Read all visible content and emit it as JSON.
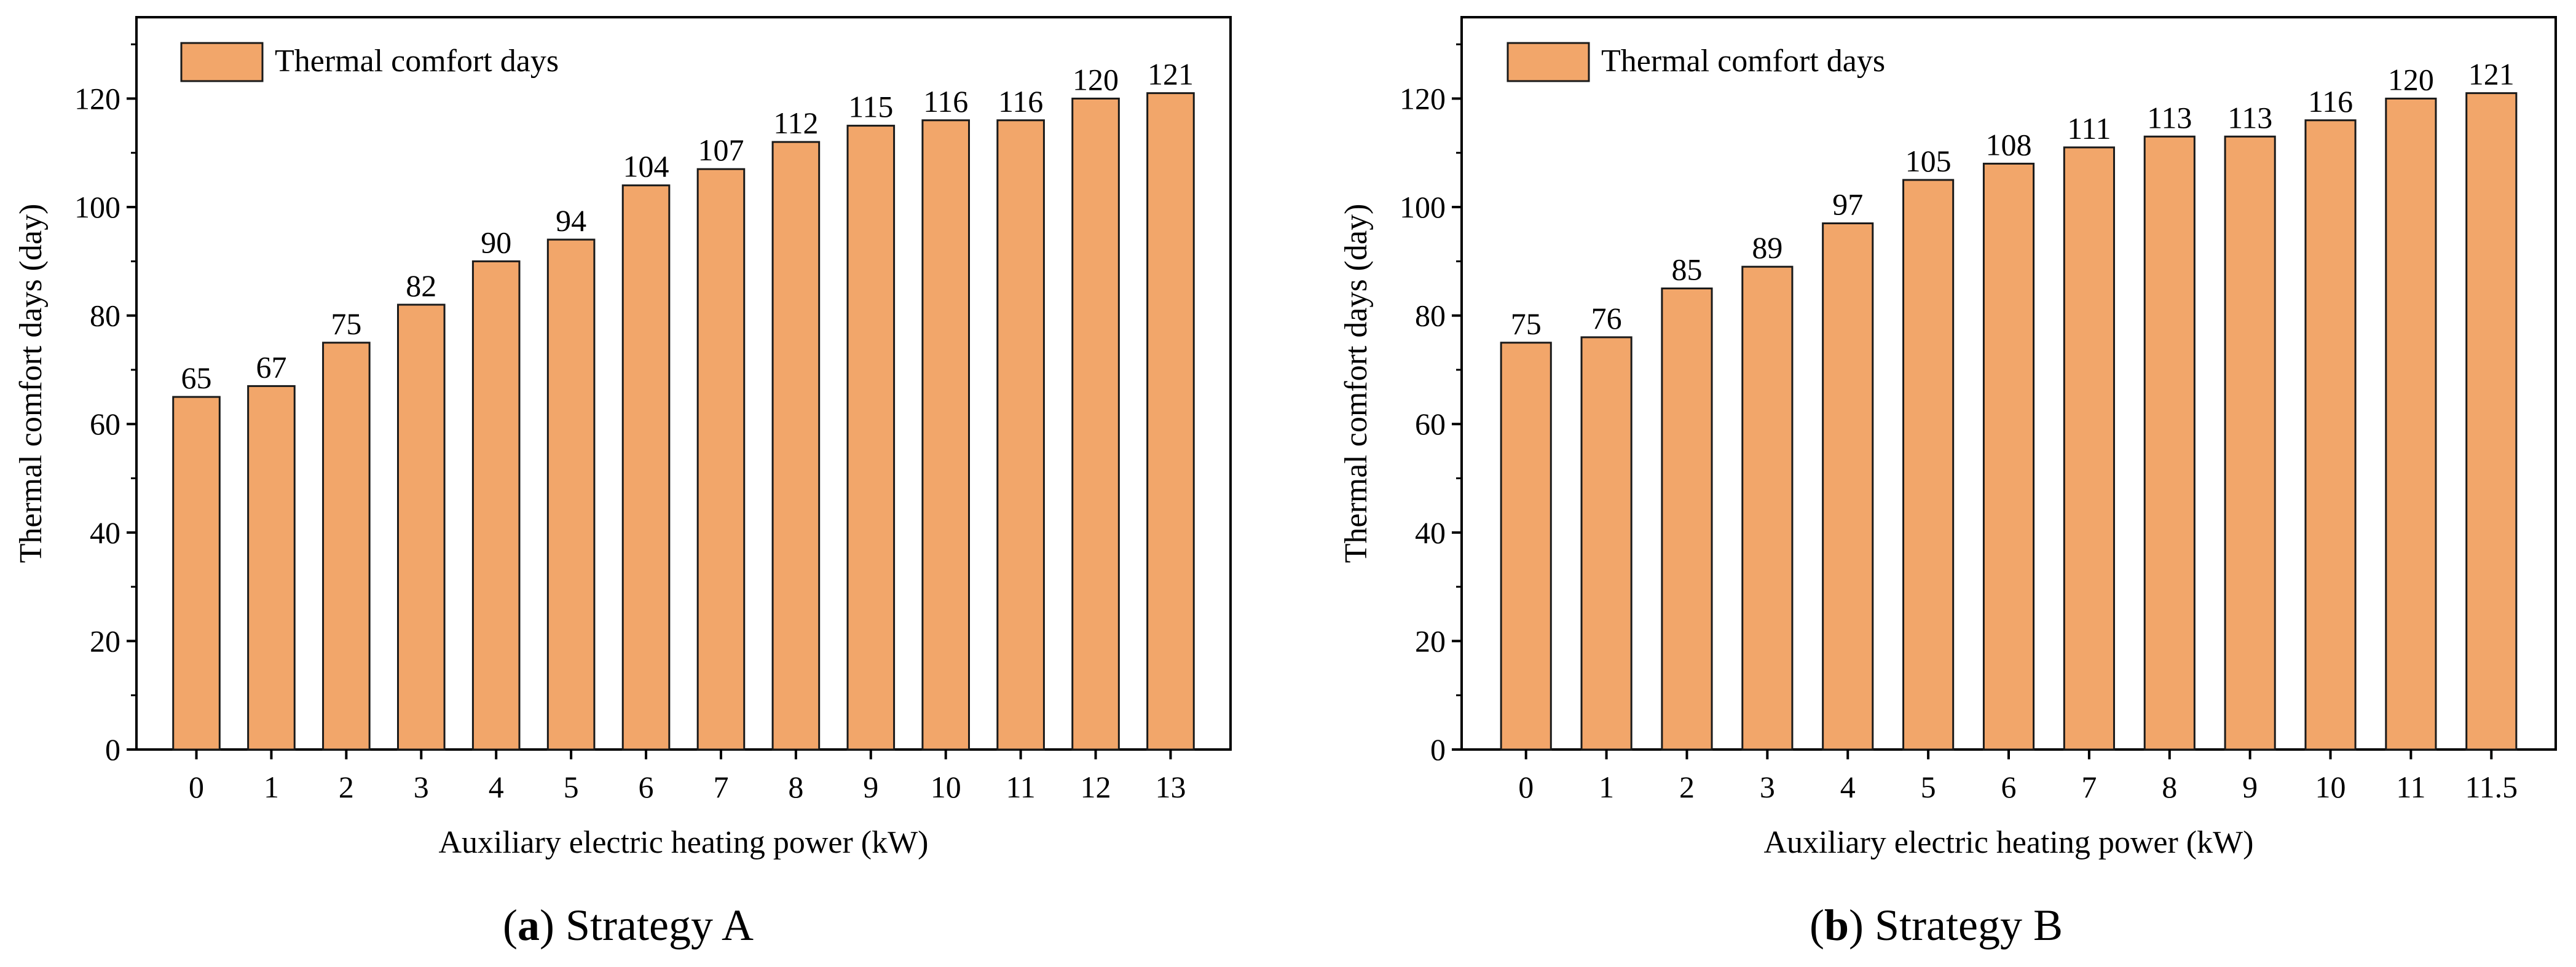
{
  "chart_data": [
    {
      "type": "bar",
      "panel_label": "a",
      "caption_title": "Strategy A",
      "categories": [
        "0",
        "1",
        "2",
        "3",
        "4",
        "5",
        "6",
        "7",
        "8",
        "9",
        "10",
        "11",
        "12",
        "13"
      ],
      "series": [
        {
          "name": "Thermal comfort days",
          "values": [
            65,
            67,
            75,
            82,
            90,
            94,
            104,
            107,
            112,
            115,
            116,
            116,
            120,
            121
          ]
        }
      ],
      "xlabel": "Auxiliary electric heating power (kW)",
      "ylabel": "Thermal comfort days (day)",
      "ylim": [
        0,
        135
      ],
      "yticks": [
        0,
        20,
        40,
        60,
        80,
        100,
        120
      ],
      "legend_position": "top-left",
      "grid": false
    },
    {
      "type": "bar",
      "panel_label": "b",
      "caption_title": "Strategy B",
      "categories": [
        "0",
        "1",
        "2",
        "3",
        "4",
        "5",
        "6",
        "7",
        "8",
        "9",
        "10",
        "11",
        "11.5"
      ],
      "series": [
        {
          "name": "Thermal comfort days",
          "values": [
            75,
            76,
            85,
            89,
            97,
            105,
            108,
            111,
            113,
            113,
            116,
            120,
            121
          ]
        }
      ],
      "xlabel": "Auxiliary electric heating power (kW)",
      "ylabel": "Thermal comfort days (day)",
      "ylim": [
        0,
        135
      ],
      "yticks": [
        0,
        20,
        40,
        60,
        80,
        100,
        120
      ],
      "legend_position": "top-left",
      "grid": false
    }
  ],
  "colors": {
    "bar_fill": "#F2A66A",
    "bar_stroke": "#1a1a1a",
    "axis": "#000000",
    "background": "#ffffff"
  }
}
